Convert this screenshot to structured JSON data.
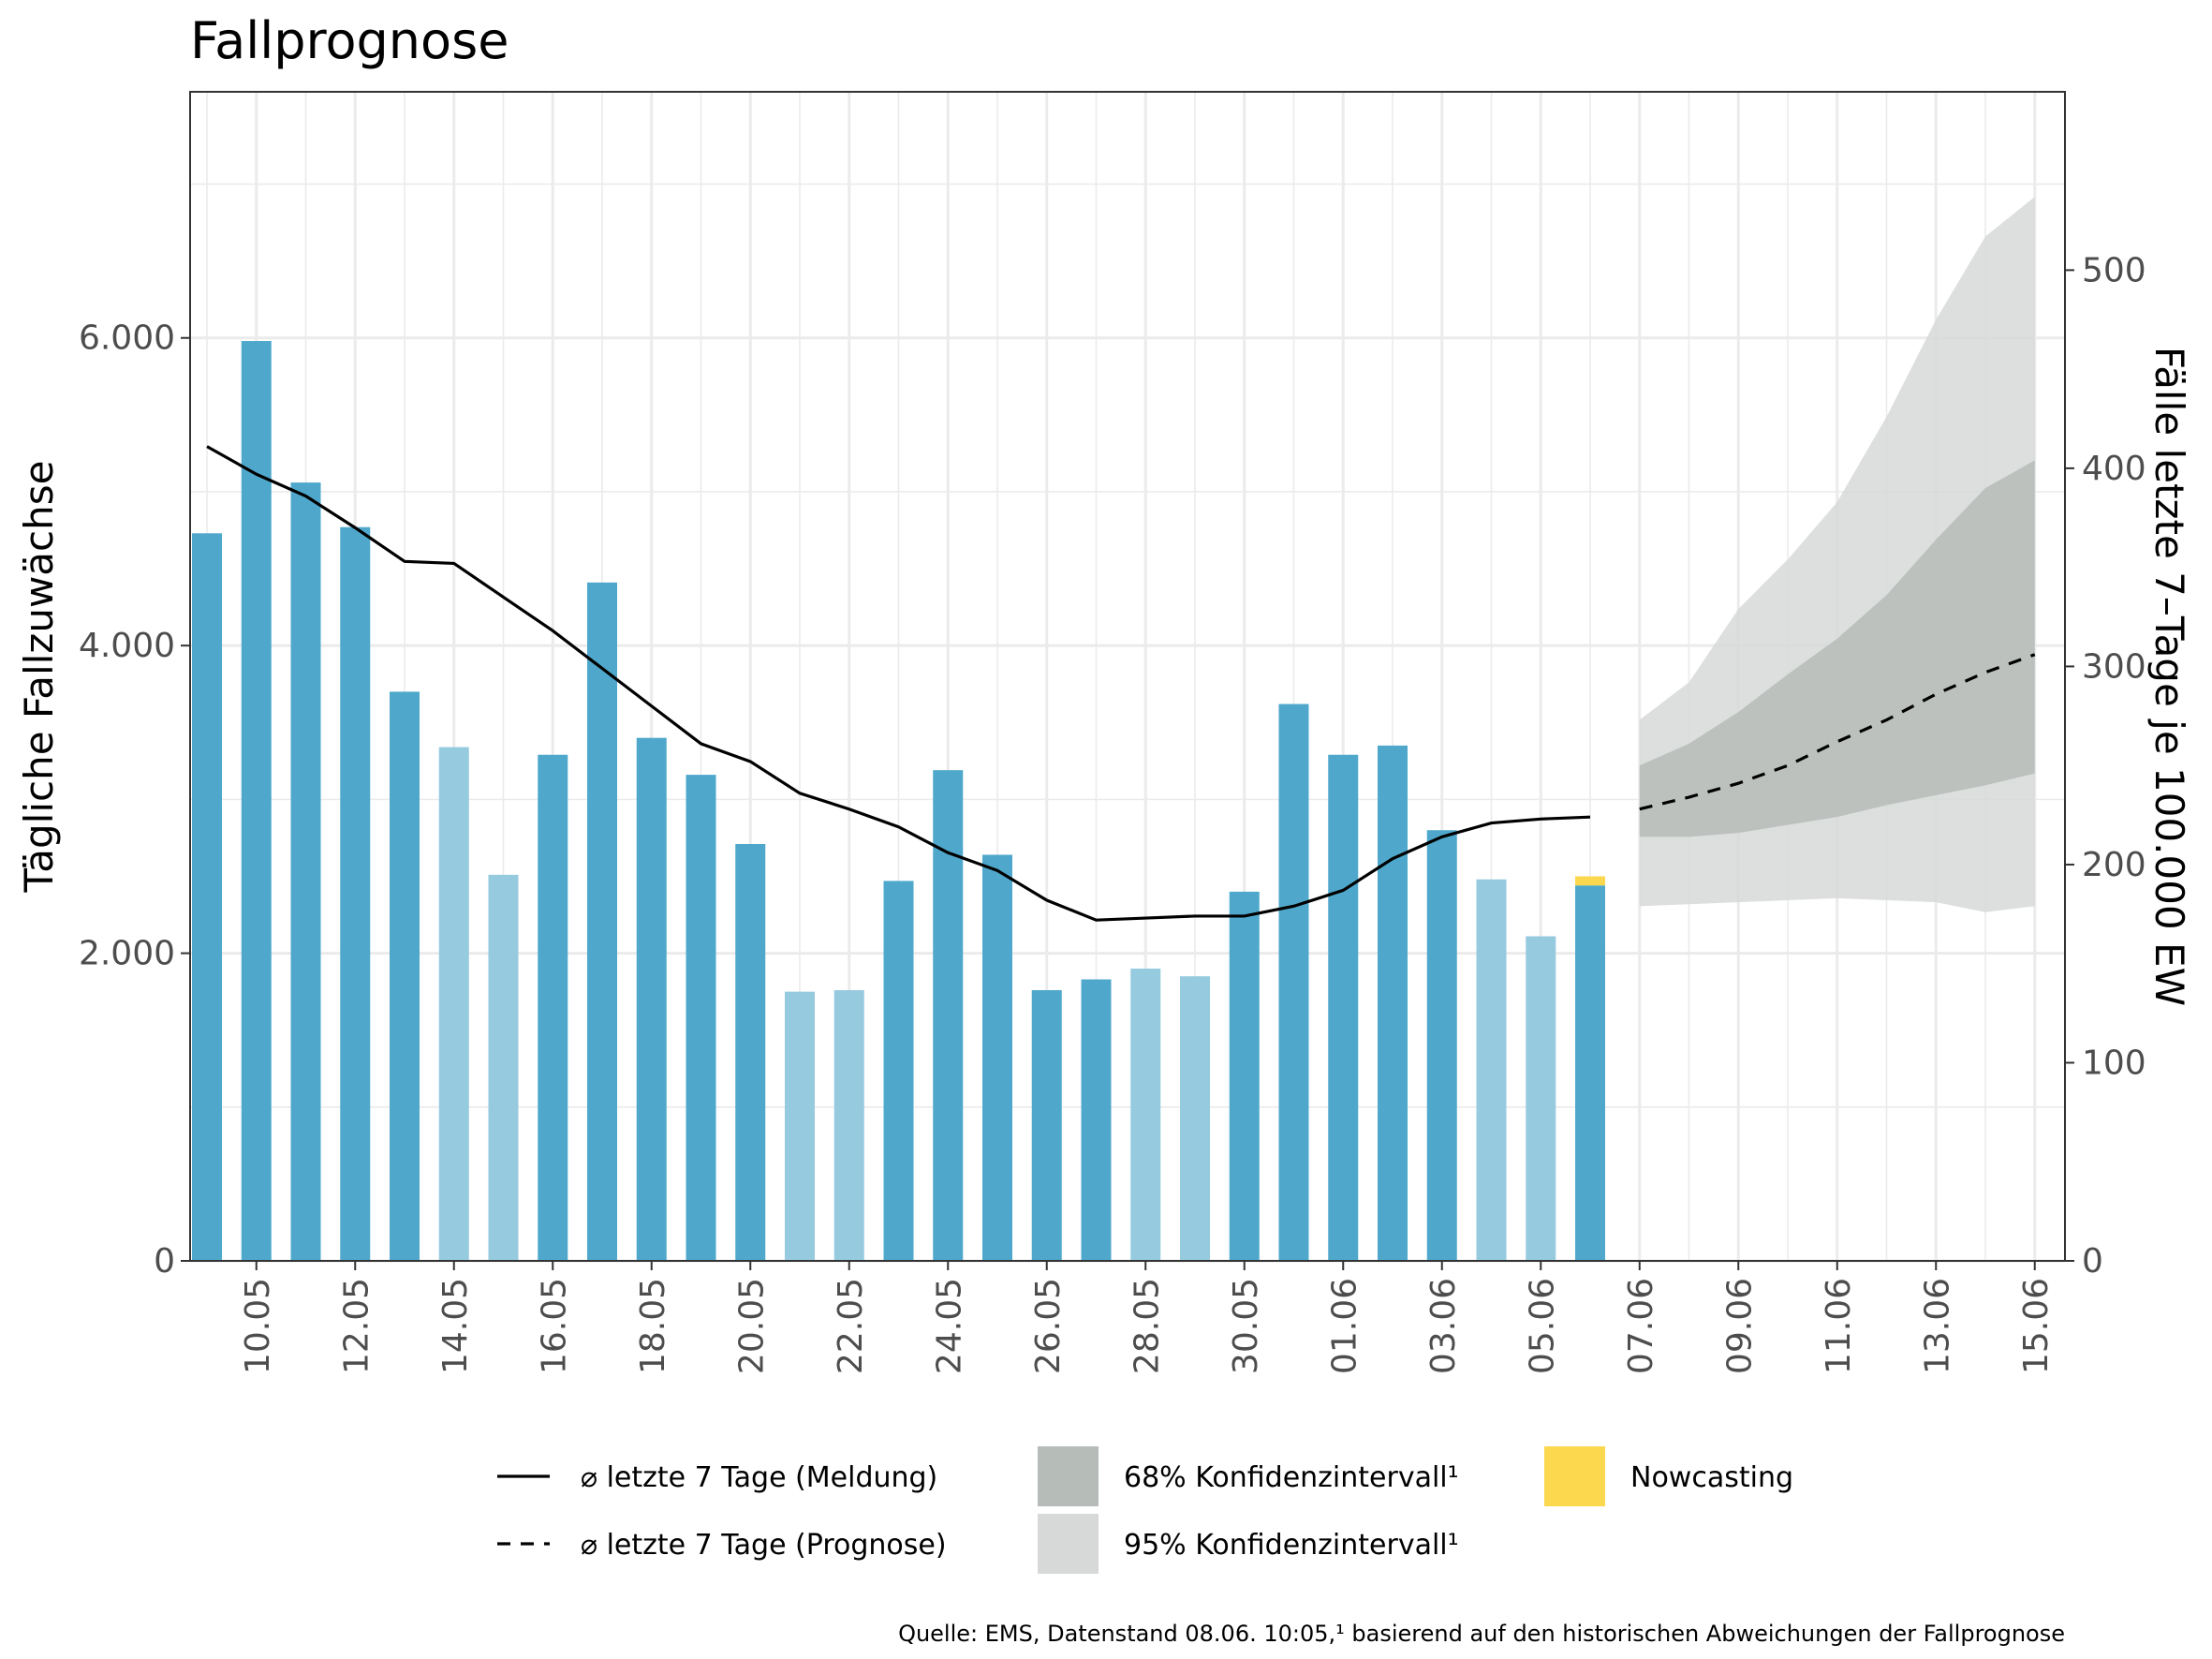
{
  "chart_data": {
    "type": "bar",
    "title": "Fallprognose",
    "ylabel_left": "Tägliche Fallzuwächse",
    "ylabel_right": "Fälle letzte 7–Tage je 100.000 EW",
    "xlabel": "",
    "ylim_left": [
      0,
      7600
    ],
    "ylim_right": [
      0,
      590
    ],
    "y_ticks_left": [
      0,
      2000,
      4000,
      6000
    ],
    "y_tick_labels_left": [
      "0",
      "2.000",
      "4.000",
      "6.000"
    ],
    "y_ticks_right": [
      0,
      100,
      200,
      300,
      400,
      500
    ],
    "y_tick_labels_right": [
      "0",
      "100",
      "200",
      "300",
      "400",
      "500"
    ],
    "x_tick_labels": [
      "10.05",
      "12.05",
      "14.05",
      "16.05",
      "18.05",
      "20.05",
      "22.05",
      "24.05",
      "26.05",
      "28.05",
      "30.05",
      "01.06",
      "03.06",
      "05.06",
      "07.06",
      "09.06",
      "11.06",
      "13.06",
      "15.06"
    ],
    "grid": true,
    "legend_position": "bottom",
    "colors": {
      "bar_weekday": "#4fa8cc",
      "bar_weekend": "#96cadf",
      "nowcasting": "#fcd84e",
      "ci68": "#b6bcb8",
      "ci95": "#d7d9d8",
      "line": "#000000"
    },
    "bars": {
      "dates": [
        "09.05",
        "10.05",
        "11.05",
        "12.05",
        "13.05",
        "14.05",
        "15.05",
        "16.05",
        "17.05",
        "18.05",
        "19.05",
        "20.05",
        "21.05",
        "22.05",
        "23.05",
        "24.05",
        "25.05",
        "26.05",
        "27.05",
        "28.05",
        "29.05",
        "30.05",
        "31.05",
        "01.06",
        "02.06",
        "03.06",
        "04.06",
        "05.06",
        "06.06"
      ],
      "values": [
        4730,
        5980,
        5060,
        4770,
        3700,
        3340,
        2510,
        3290,
        4410,
        3400,
        3160,
        2710,
        1750,
        1760,
        2470,
        3190,
        2640,
        1760,
        1830,
        1900,
        1850,
        2400,
        3620,
        3290,
        3350,
        2800,
        2480,
        2110,
        2440
      ],
      "weekend": [
        false,
        false,
        false,
        false,
        false,
        true,
        true,
        false,
        false,
        false,
        false,
        false,
        true,
        true,
        false,
        false,
        false,
        false,
        false,
        true,
        true,
        false,
        false,
        false,
        false,
        false,
        true,
        true,
        false
      ],
      "nowcasting_top": [
        0,
        0,
        0,
        0,
        0,
        0,
        0,
        0,
        0,
        0,
        0,
        0,
        0,
        0,
        0,
        0,
        0,
        0,
        0,
        0,
        0,
        0,
        0,
        0,
        0,
        0,
        0,
        0,
        2500
      ]
    },
    "series": [
      {
        "name": "⌀ letzte 7 Tage (Meldung)",
        "axis": "right",
        "style": "solid",
        "x": [
          "09.05",
          "10.05",
          "11.05",
          "12.05",
          "13.05",
          "14.05",
          "15.05",
          "16.05",
          "17.05",
          "18.05",
          "19.05",
          "20.05",
          "21.05",
          "22.05",
          "23.05",
          "24.05",
          "25.05",
          "26.05",
          "27.05",
          "28.05",
          "29.05",
          "30.05",
          "31.05",
          "01.06",
          "02.06",
          "03.06",
          "04.06",
          "05.06",
          "06.06"
        ],
        "values": [
          411,
          397,
          386,
          370,
          353,
          352,
          335,
          318,
          299,
          280,
          261,
          252,
          236,
          228,
          219,
          206,
          197,
          182,
          172,
          173,
          174,
          174,
          179,
          187,
          203,
          214,
          221,
          223,
          224
        ]
      },
      {
        "name": "⌀ letzte 7 Tage (Prognose)",
        "axis": "right",
        "style": "dashed",
        "x": [
          "07.06",
          "08.06",
          "09.06",
          "10.06",
          "11.06",
          "12.06",
          "13.06",
          "14.06",
          "15.06"
        ],
        "values": [
          228,
          234,
          241,
          250,
          262,
          273,
          286,
          297,
          306
        ]
      }
    ],
    "ci": {
      "x": [
        "07.06",
        "08.06",
        "09.06",
        "10.06",
        "11.06",
        "12.06",
        "13.06",
        "14.06",
        "15.06"
      ],
      "ci68_low": [
        214,
        214,
        216,
        220,
        224,
        230,
        235,
        240,
        246
      ],
      "ci68_high": [
        250,
        261,
        277,
        296,
        314,
        336,
        364,
        390,
        404
      ],
      "ci95_low": [
        179,
        180,
        181,
        182,
        183,
        182,
        181,
        176,
        179
      ],
      "ci95_high": [
        273,
        292,
        329,
        354,
        383,
        426,
        475,
        517,
        537
      ]
    },
    "legend": [
      {
        "label": "⌀ letzte 7 Tage (Meldung)",
        "kind": "line-solid"
      },
      {
        "label": "⌀ letzte 7 Tage (Prognose)",
        "kind": "line-dashed"
      },
      {
        "label": "68% Konfidenzintervall¹",
        "kind": "fill",
        "color": "#b6bcb8"
      },
      {
        "label": "95% Konfidenzintervall¹",
        "kind": "fill",
        "color": "#d7d9d8"
      },
      {
        "label": "Nowcasting",
        "kind": "fill",
        "color": "#fcd84e"
      }
    ],
    "source": "Quelle: EMS, Datenstand 08.06. 10:05,¹ basierend auf den historischen Abweichungen der Fallprognose"
  }
}
